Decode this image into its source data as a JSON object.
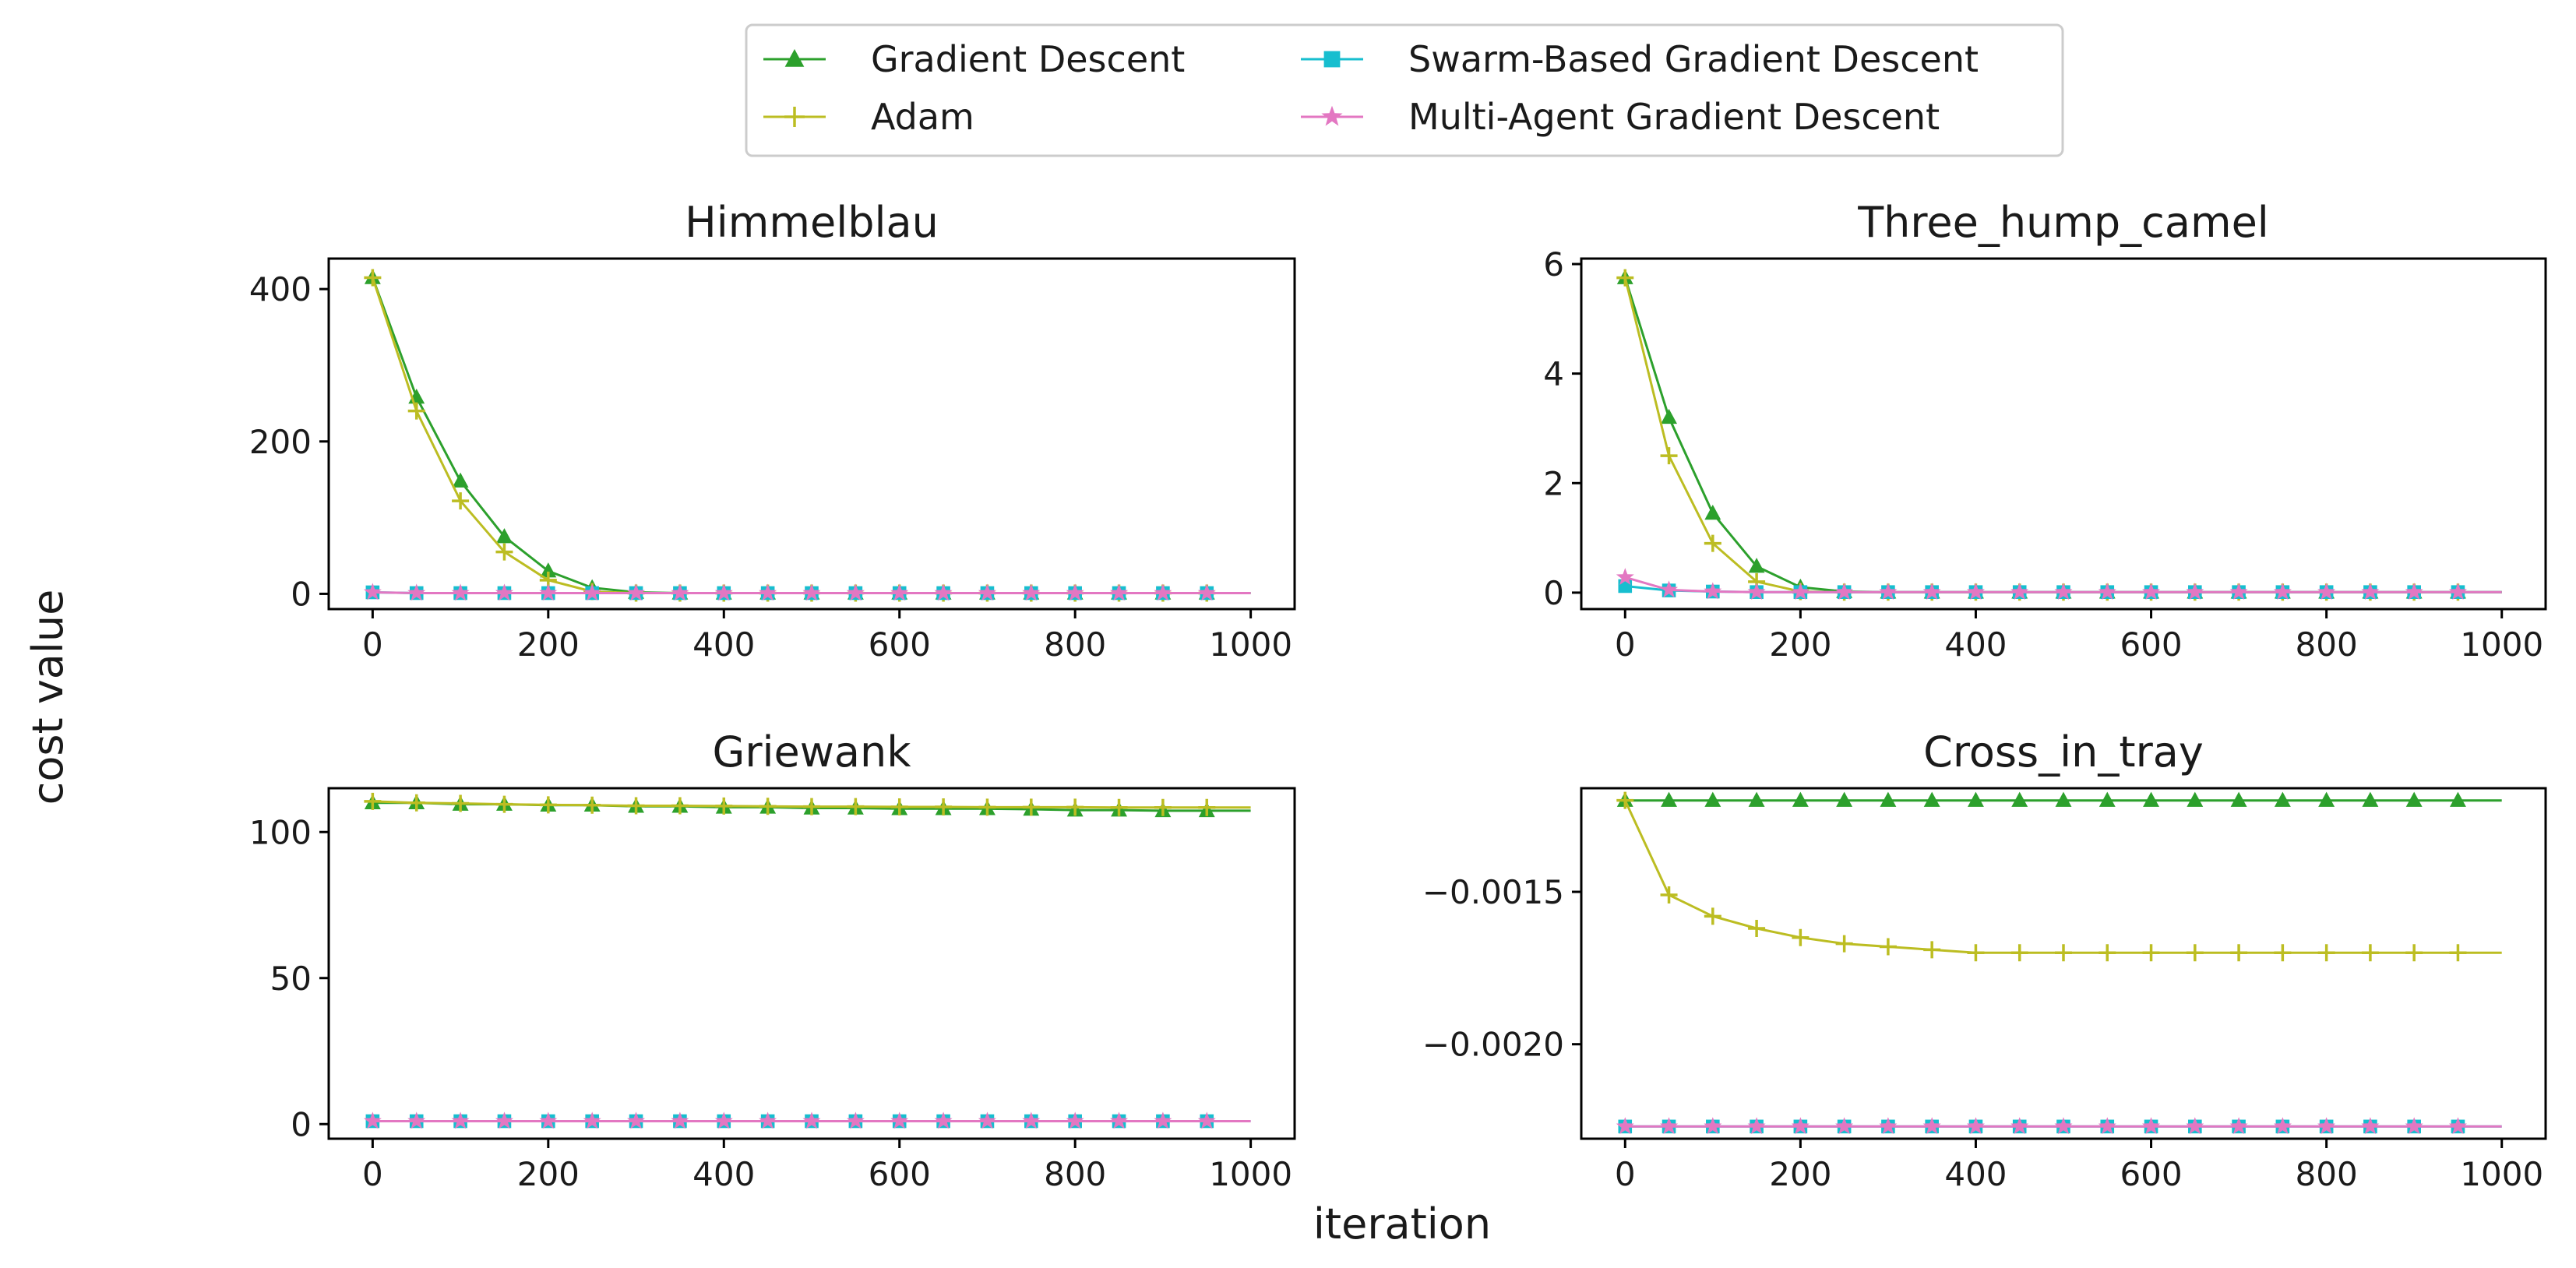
{
  "figure": {
    "ylabel": "cost value",
    "xlabel": "iteration"
  },
  "legend": {
    "placement": "top-center",
    "entries": [
      {
        "name": "Gradient Descent",
        "color": "#2ca02c",
        "marker": "triangle"
      },
      {
        "name": "Adam",
        "color": "#bcbd22",
        "marker": "plus"
      },
      {
        "name": "Swarm-Based Gradient Descent",
        "color": "#17becf",
        "marker": "square"
      },
      {
        "name": "Multi-Agent Gradient Descent",
        "color": "#e377c2",
        "marker": "star"
      }
    ]
  },
  "chart_data": [
    {
      "type": "line",
      "title": "Himmelblau",
      "xlim": [
        -50,
        1050
      ],
      "ylim": [
        -20,
        440
      ],
      "xticks": [
        0,
        200,
        400,
        600,
        800,
        1000
      ],
      "xtick_labels": [
        "0",
        "200",
        "400",
        "600",
        "800",
        "1000"
      ],
      "yticks": [
        0,
        200,
        400
      ],
      "ytick_labels": [
        "0",
        "200",
        "400"
      ],
      "x": [
        0,
        50,
        100,
        150,
        200,
        250,
        300,
        350,
        400,
        450,
        500,
        550,
        600,
        650,
        700,
        750,
        800,
        850,
        900,
        950
      ],
      "series": [
        {
          "name": "Gradient Descent",
          "values": [
            415,
            258,
            148,
            75,
            30,
            8,
            2,
            1,
            1,
            1,
            1,
            1,
            1,
            1,
            1,
            1,
            1,
            1,
            1,
            1
          ]
        },
        {
          "name": "Adam",
          "values": [
            415,
            240,
            122,
            55,
            18,
            3,
            1,
            1,
            1,
            1,
            1,
            1,
            1,
            1,
            1,
            1,
            1,
            1,
            1,
            1
          ]
        },
        {
          "name": "Swarm-Based Gradient Descent",
          "values": [
            2,
            1,
            1,
            1,
            1,
            1,
            1,
            1,
            1,
            1,
            1,
            1,
            1,
            1,
            1,
            1,
            1,
            1,
            1,
            1
          ]
        },
        {
          "name": "Multi-Agent Gradient Descent",
          "values": [
            2,
            1,
            1,
            1,
            1,
            1,
            1,
            1,
            1,
            1,
            1,
            1,
            1,
            1,
            1,
            1,
            1,
            1,
            1,
            1
          ]
        }
      ]
    },
    {
      "type": "line",
      "title": "Three_hump_camel",
      "xlim": [
        -50,
        1050
      ],
      "ylim": [
        -0.3,
        6.1
      ],
      "xticks": [
        0,
        200,
        400,
        600,
        800,
        1000
      ],
      "xtick_labels": [
        "0",
        "200",
        "400",
        "600",
        "800",
        "1000"
      ],
      "yticks": [
        0,
        2,
        4,
        6
      ],
      "ytick_labels": [
        "0",
        "2",
        "4",
        "6"
      ],
      "x": [
        0,
        50,
        100,
        150,
        200,
        250,
        300,
        350,
        400,
        450,
        500,
        550,
        600,
        650,
        700,
        750,
        800,
        850,
        900,
        950
      ],
      "series": [
        {
          "name": "Gradient Descent",
          "values": [
            5.75,
            3.2,
            1.45,
            0.48,
            0.1,
            0.02,
            0.01,
            0.01,
            0.01,
            0.01,
            0.01,
            0.01,
            0.01,
            0.01,
            0.01,
            0.01,
            0.01,
            0.01,
            0.01,
            0.01
          ]
        },
        {
          "name": "Adam",
          "values": [
            5.75,
            2.5,
            0.9,
            0.2,
            0.02,
            0.01,
            0.01,
            0.01,
            0.01,
            0.01,
            0.01,
            0.01,
            0.01,
            0.01,
            0.01,
            0.01,
            0.01,
            0.01,
            0.01,
            0.01
          ]
        },
        {
          "name": "Swarm-Based Gradient Descent",
          "values": [
            0.12,
            0.04,
            0.02,
            0.01,
            0.01,
            0.01,
            0.01,
            0.01,
            0.01,
            0.01,
            0.01,
            0.01,
            0.01,
            0.01,
            0.01,
            0.01,
            0.01,
            0.01,
            0.01,
            0.01
          ]
        },
        {
          "name": "Multi-Agent Gradient Descent",
          "values": [
            0.28,
            0.05,
            0.02,
            0.01,
            0.01,
            0.01,
            0.01,
            0.01,
            0.01,
            0.01,
            0.01,
            0.01,
            0.01,
            0.01,
            0.01,
            0.01,
            0.01,
            0.01,
            0.01,
            0.01
          ]
        }
      ]
    },
    {
      "type": "line",
      "title": "Griewank",
      "xlim": [
        -50,
        1050
      ],
      "ylim": [
        -5,
        115
      ],
      "xticks": [
        0,
        200,
        400,
        600,
        800,
        1000
      ],
      "xtick_labels": [
        "0",
        "200",
        "400",
        "600",
        "800",
        "1000"
      ],
      "yticks": [
        0,
        50,
        100
      ],
      "ytick_labels": [
        "0",
        "50",
        "100"
      ],
      "x": [
        0,
        50,
        100,
        150,
        200,
        250,
        300,
        350,
        400,
        450,
        500,
        550,
        600,
        650,
        700,
        750,
        800,
        850,
        900,
        950
      ],
      "series": [
        {
          "name": "Gradient Descent",
          "values": [
            110,
            110,
            109.5,
            109.5,
            109.2,
            109.2,
            108.8,
            108.8,
            108.5,
            108.5,
            108.2,
            108.2,
            108,
            108,
            108,
            107.8,
            107.5,
            107.5,
            107.3,
            107.3
          ]
        },
        {
          "name": "Adam",
          "values": [
            110.5,
            110,
            109.8,
            109.5,
            109.3,
            109.2,
            109,
            109,
            108.9,
            108.8,
            108.7,
            108.7,
            108.6,
            108.6,
            108.5,
            108.5,
            108.5,
            108.4,
            108.4,
            108.4
          ]
        },
        {
          "name": "Swarm-Based Gradient Descent",
          "values": [
            1,
            1,
            1,
            1,
            1,
            1,
            1,
            1,
            1,
            1,
            1,
            1,
            1,
            1,
            1,
            1,
            1,
            1,
            1,
            1
          ]
        },
        {
          "name": "Multi-Agent Gradient Descent",
          "values": [
            1,
            1,
            1,
            1,
            1,
            1,
            1,
            1,
            1,
            1,
            1,
            1,
            1,
            1,
            1,
            1,
            1,
            1,
            1,
            1
          ]
        }
      ]
    },
    {
      "type": "line",
      "title": "Cross_in_tray",
      "xlim": [
        -50,
        1050
      ],
      "ylim": [
        -0.00231,
        -0.00116
      ],
      "xticks": [
        0,
        200,
        400,
        600,
        800,
        1000
      ],
      "xtick_labels": [
        "0",
        "200",
        "400",
        "600",
        "800",
        "1000"
      ],
      "yticks": [
        -0.0015,
        -0.002
      ],
      "ytick_labels": [
        "−0.0015",
        "−0.0020"
      ],
      "x": [
        0,
        50,
        100,
        150,
        200,
        250,
        300,
        350,
        400,
        450,
        500,
        550,
        600,
        650,
        700,
        750,
        800,
        850,
        900,
        950
      ],
      "series": [
        {
          "name": "Gradient Descent",
          "values": [
            -0.0012,
            -0.0012,
            -0.0012,
            -0.0012,
            -0.0012,
            -0.0012,
            -0.0012,
            -0.0012,
            -0.0012,
            -0.0012,
            -0.0012,
            -0.0012,
            -0.0012,
            -0.0012,
            -0.0012,
            -0.0012,
            -0.0012,
            -0.0012,
            -0.0012,
            -0.0012
          ]
        },
        {
          "name": "Adam",
          "values": [
            -0.0012,
            -0.00151,
            -0.00158,
            -0.00162,
            -0.00165,
            -0.00167,
            -0.00168,
            -0.00169,
            -0.0017,
            -0.0017,
            -0.0017,
            -0.0017,
            -0.0017,
            -0.0017,
            -0.0017,
            -0.0017,
            -0.0017,
            -0.0017,
            -0.0017,
            -0.0017
          ]
        },
        {
          "name": "Swarm-Based Gradient Descent",
          "values": [
            -0.00227,
            -0.00227,
            -0.00227,
            -0.00227,
            -0.00227,
            -0.00227,
            -0.00227,
            -0.00227,
            -0.00227,
            -0.00227,
            -0.00227,
            -0.00227,
            -0.00227,
            -0.00227,
            -0.00227,
            -0.00227,
            -0.00227,
            -0.00227,
            -0.00227,
            -0.00227
          ]
        },
        {
          "name": "Multi-Agent Gradient Descent",
          "values": [
            -0.00227,
            -0.00227,
            -0.00227,
            -0.00227,
            -0.00227,
            -0.00227,
            -0.00227,
            -0.00227,
            -0.00227,
            -0.00227,
            -0.00227,
            -0.00227,
            -0.00227,
            -0.00227,
            -0.00227,
            -0.00227,
            -0.00227,
            -0.00227,
            -0.00227,
            -0.00227
          ]
        }
      ]
    }
  ]
}
